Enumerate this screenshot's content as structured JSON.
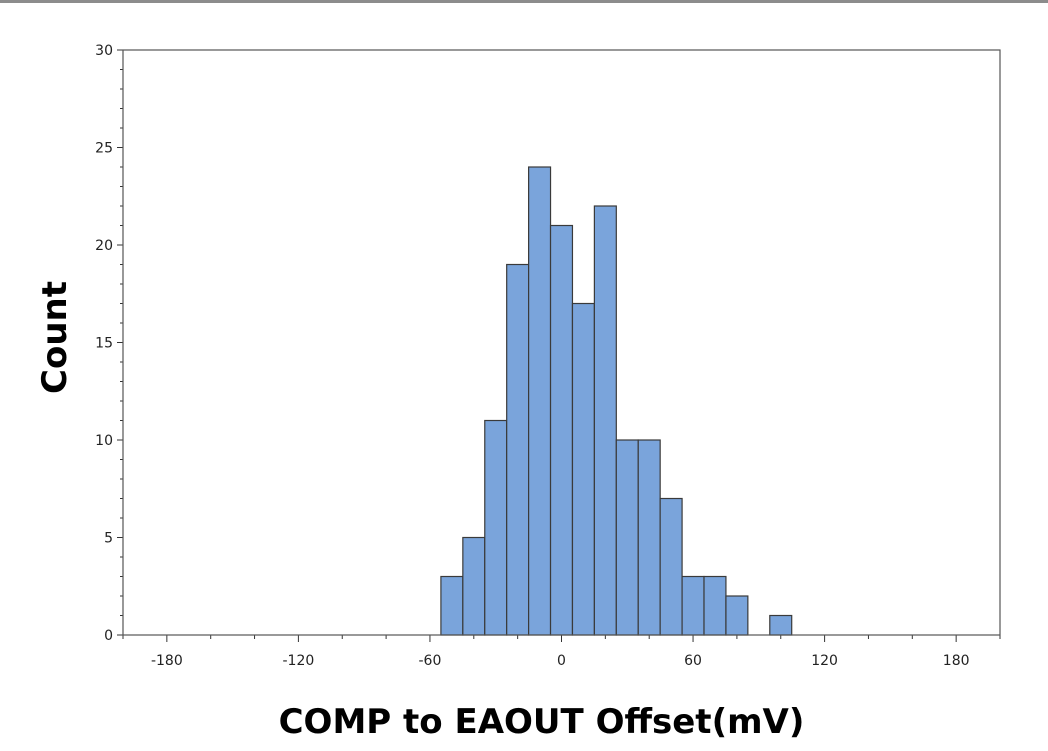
{
  "chart_data": {
    "type": "bar",
    "title": "",
    "xlabel": "COMP to EAOUT Offset(mV)",
    "ylabel": "Count",
    "xlim": [
      -200,
      200
    ],
    "ylim": [
      0,
      30
    ],
    "x_ticks": [
      -180,
      -120,
      -60,
      0,
      60,
      120,
      180
    ],
    "y_ticks": [
      0,
      5,
      10,
      15,
      20,
      25,
      30
    ],
    "bin_width": 10,
    "bins": [
      {
        "x0": -55,
        "x1": -45,
        "count": 3
      },
      {
        "x0": -45,
        "x1": -35,
        "count": 5
      },
      {
        "x0": -35,
        "x1": -25,
        "count": 11
      },
      {
        "x0": -25,
        "x1": -15,
        "count": 19
      },
      {
        "x0": -15,
        "x1": -5,
        "count": 24
      },
      {
        "x0": -5,
        "x1": 5,
        "count": 21
      },
      {
        "x0": 5,
        "x1": 15,
        "count": 17
      },
      {
        "x0": 15,
        "x1": 25,
        "count": 22
      },
      {
        "x0": 25,
        "x1": 35,
        "count": 10
      },
      {
        "x0": 35,
        "x1": 45,
        "count": 10
      },
      {
        "x0": 45,
        "x1": 55,
        "count": 7
      },
      {
        "x0": 55,
        "x1": 65,
        "count": 3
      },
      {
        "x0": 65,
        "x1": 75,
        "count": 3
      },
      {
        "x0": 75,
        "x1": 85,
        "count": 2
      },
      {
        "x0": 95,
        "x1": 105,
        "count": 1
      }
    ],
    "bar_color": "#7aa4db",
    "bar_edge_color": "#3a3a3a",
    "grid": false,
    "legend": "none"
  }
}
